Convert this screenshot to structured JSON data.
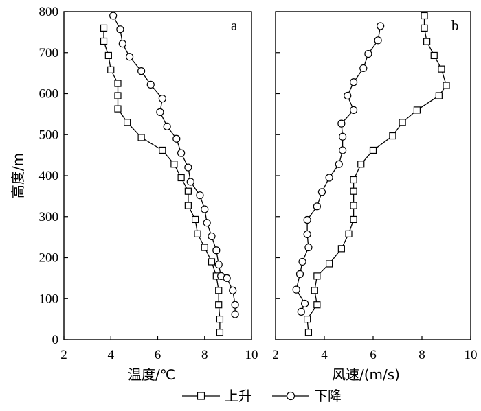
{
  "chart_data": [
    {
      "type": "line",
      "panel_label": "a",
      "xlabel": "温度/℃",
      "ylabel": "高度/m",
      "xlim": [
        2,
        10
      ],
      "ylim": [
        0,
        800
      ],
      "xticks": [
        2,
        4,
        6,
        8,
        10
      ],
      "yticks": [
        0,
        100,
        200,
        300,
        400,
        500,
        600,
        700,
        800
      ],
      "series": [
        {
          "name": "上升",
          "marker": "square",
          "points": [
            [
              3.7,
              760
            ],
            [
              3.7,
              728
            ],
            [
              3.9,
              693
            ],
            [
              4.0,
              658
            ],
            [
              4.3,
              625
            ],
            [
              4.3,
              595
            ],
            [
              4.3,
              563
            ],
            [
              4.7,
              530
            ],
            [
              5.3,
              493
            ],
            [
              6.2,
              462
            ],
            [
              6.7,
              428
            ],
            [
              7.0,
              395
            ],
            [
              7.3,
              362
            ],
            [
              7.3,
              327
            ],
            [
              7.6,
              293
            ],
            [
              7.7,
              258
            ],
            [
              8.0,
              225
            ],
            [
              8.3,
              190
            ],
            [
              8.5,
              155
            ],
            [
              8.6,
              120
            ],
            [
              8.6,
              85
            ],
            [
              8.65,
              50
            ],
            [
              8.65,
              18
            ]
          ]
        },
        {
          "name": "下降",
          "marker": "circle",
          "points": [
            [
              4.1,
              790
            ],
            [
              4.4,
              757
            ],
            [
              4.5,
              722
            ],
            [
              4.8,
              690
            ],
            [
              5.3,
              655
            ],
            [
              5.7,
              622
            ],
            [
              6.2,
              588
            ],
            [
              6.1,
              555
            ],
            [
              6.4,
              520
            ],
            [
              6.8,
              490
            ],
            [
              7.0,
              455
            ],
            [
              7.3,
              420
            ],
            [
              7.4,
              385
            ],
            [
              7.8,
              352
            ],
            [
              8.0,
              318
            ],
            [
              8.1,
              285
            ],
            [
              8.3,
              252
            ],
            [
              8.5,
              218
            ],
            [
              8.6,
              183
            ],
            [
              8.7,
              155
            ],
            [
              8.95,
              150
            ],
            [
              9.2,
              120
            ],
            [
              9.3,
              85
            ],
            [
              9.3,
              62
            ]
          ]
        }
      ]
    },
    {
      "type": "line",
      "panel_label": "b",
      "xlabel": "风速/(m/s)",
      "ylabel": "",
      "xlim": [
        2,
        10
      ],
      "ylim": [
        0,
        800
      ],
      "xticks": [
        2,
        4,
        6,
        8,
        10
      ],
      "yticks": [
        0,
        100,
        200,
        300,
        400,
        500,
        600,
        700,
        800
      ],
      "series": [
        {
          "name": "上升",
          "marker": "square",
          "points": [
            [
              8.1,
              790
            ],
            [
              8.1,
              760
            ],
            [
              8.2,
              727
            ],
            [
              8.5,
              693
            ],
            [
              8.8,
              660
            ],
            [
              9.0,
              620
            ],
            [
              8.7,
              595
            ],
            [
              7.8,
              560
            ],
            [
              7.2,
              530
            ],
            [
              6.8,
              497
            ],
            [
              6.0,
              462
            ],
            [
              5.5,
              428
            ],
            [
              5.2,
              390
            ],
            [
              5.2,
              362
            ],
            [
              5.2,
              327
            ],
            [
              5.2,
              293
            ],
            [
              5.0,
              258
            ],
            [
              4.7,
              222
            ],
            [
              4.2,
              185
            ],
            [
              3.7,
              155
            ],
            [
              3.6,
              120
            ],
            [
              3.7,
              85
            ],
            [
              3.3,
              50
            ],
            [
              3.35,
              18
            ]
          ]
        },
        {
          "name": "下降",
          "marker": "circle",
          "points": [
            [
              6.3,
              765
            ],
            [
              6.2,
              730
            ],
            [
              5.8,
              697
            ],
            [
              5.6,
              662
            ],
            [
              5.2,
              628
            ],
            [
              4.95,
              595
            ],
            [
              5.2,
              560
            ],
            [
              4.7,
              527
            ],
            [
              4.75,
              495
            ],
            [
              4.75,
              462
            ],
            [
              4.6,
              428
            ],
            [
              4.2,
              395
            ],
            [
              3.9,
              360
            ],
            [
              3.7,
              325
            ],
            [
              3.3,
              292
            ],
            [
              3.3,
              257
            ],
            [
              3.35,
              225
            ],
            [
              3.1,
              190
            ],
            [
              3.0,
              160
            ],
            [
              2.85,
              122
            ],
            [
              3.2,
              88
            ],
            [
              3.05,
              68
            ]
          ]
        }
      ]
    }
  ],
  "legend": {
    "items": [
      {
        "label": "上升",
        "marker": "square"
      },
      {
        "label": "下降",
        "marker": "circle"
      }
    ]
  }
}
